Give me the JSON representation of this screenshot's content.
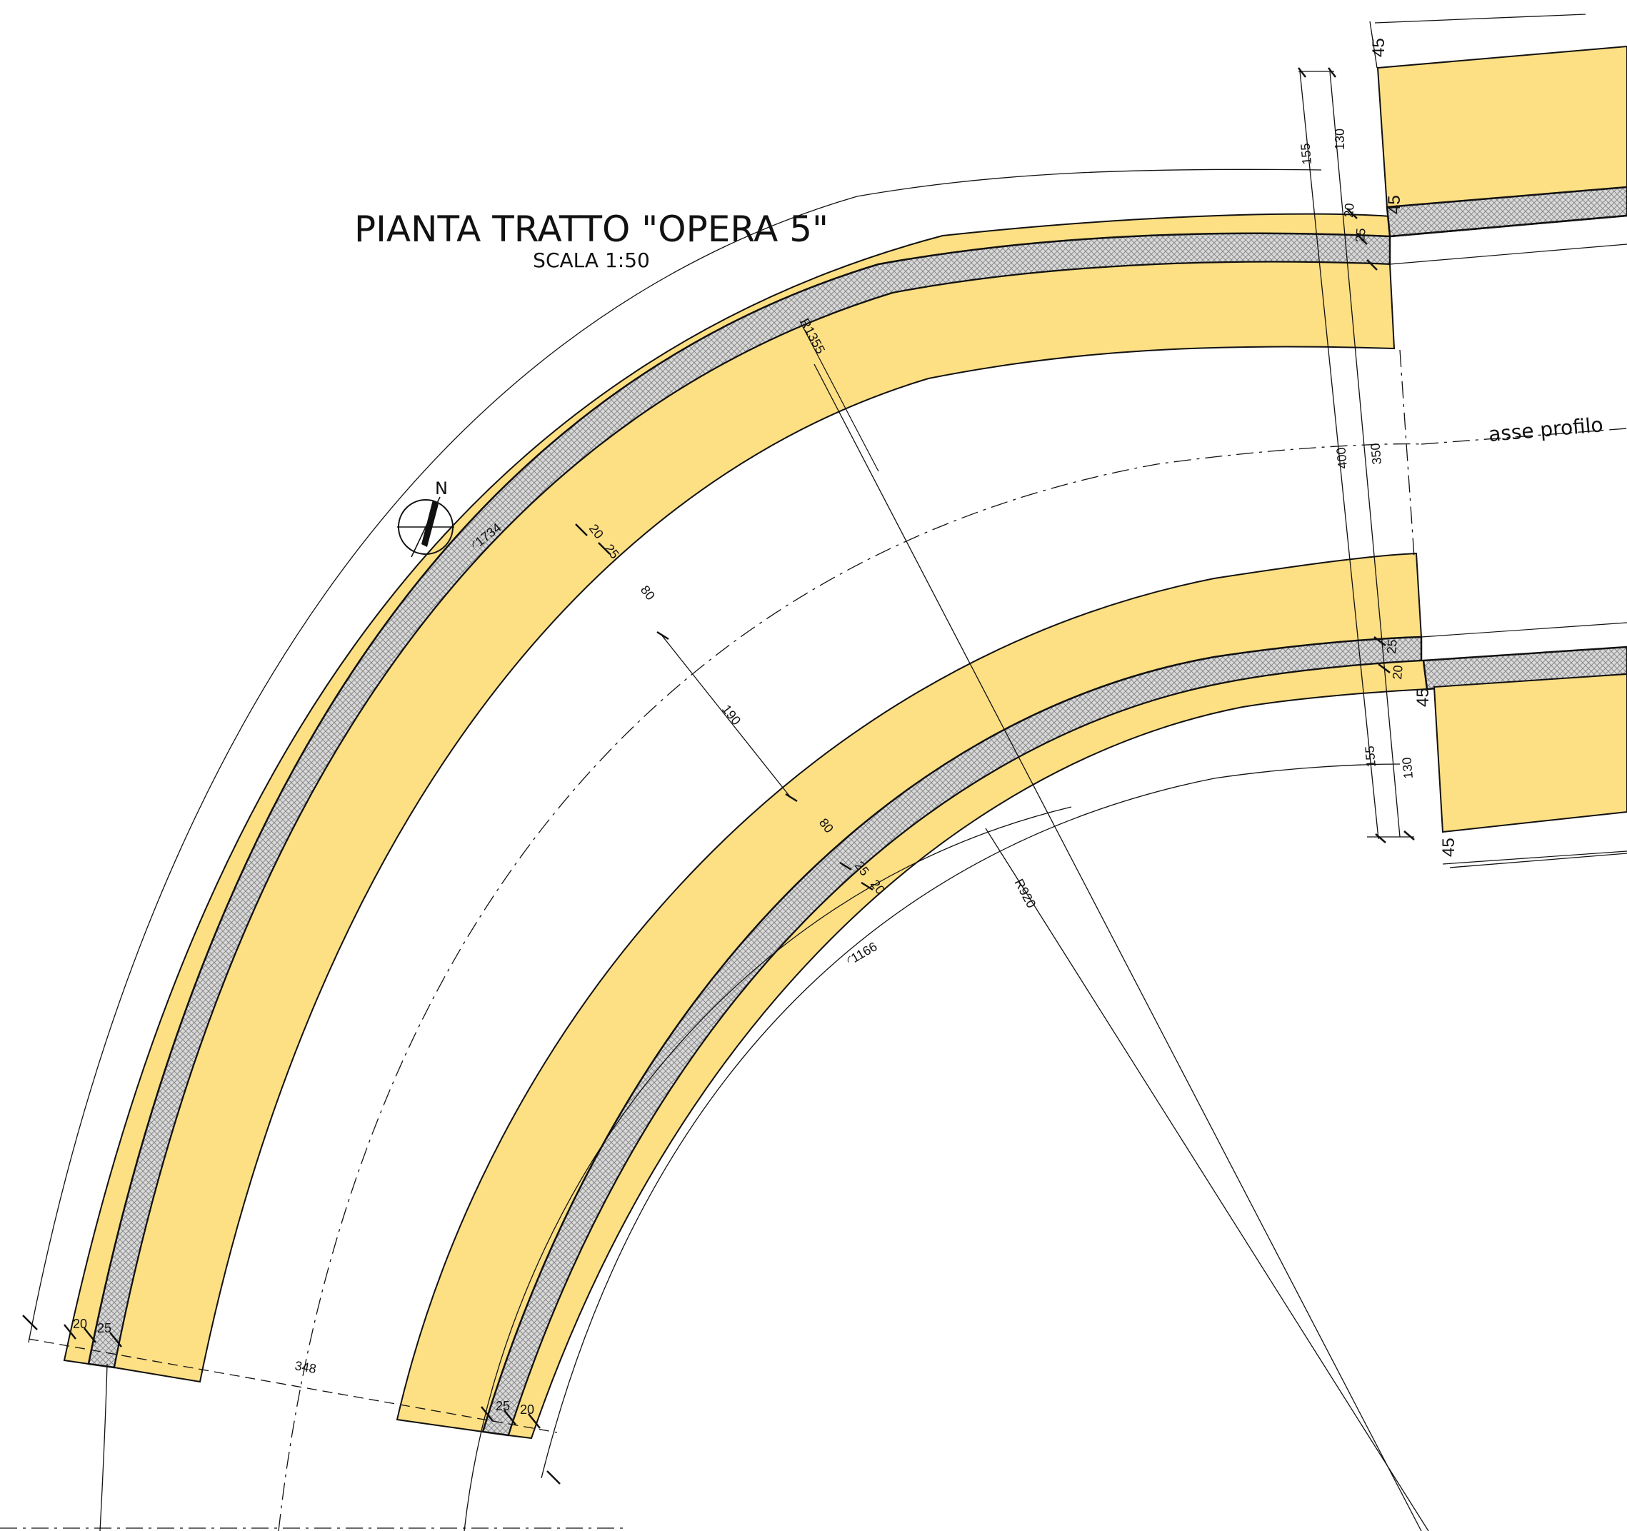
{
  "title": "PIANTA TRATTO \"OPERA 5\"",
  "subtitle": "SCALA 1:50",
  "north_label": "N",
  "axis_label": "asse profilo",
  "colors": {
    "wall_fill": "#FDDF84",
    "membrane_fill": "#d9d9d9",
    "line": "#111111",
    "background": "#ffffff"
  },
  "dimensions": {
    "r_outer": "R1355",
    "r_inner": "R920",
    "arc_outer": "◜1734",
    "arc_inner": "◜1166",
    "span_horizontal": "348",
    "span_diagonal": "190",
    "wall_thickness_outer": "80",
    "wall_thickness_inner": "80",
    "layer_20": "20",
    "layer_25": "25",
    "end_45": "45",
    "end_130": "130",
    "end_155": "155",
    "end_350": "350",
    "end_400": "400"
  }
}
